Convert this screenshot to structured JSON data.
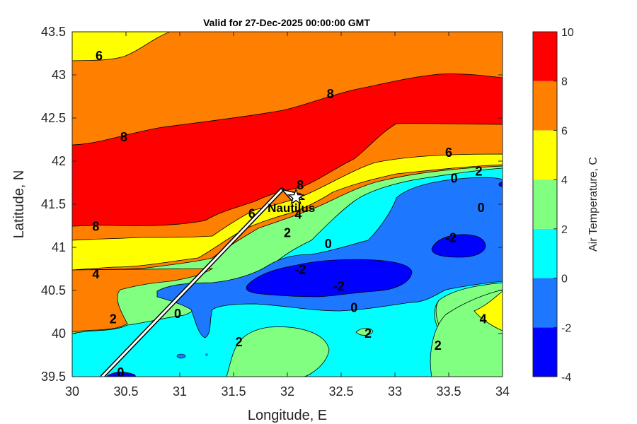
{
  "chart_data": {
    "type": "heatmap",
    "subtype": "filled-contour",
    "title": "Valid for 27-Dec-2025 00:00:00 GMT",
    "xlabel": "Longitude, E",
    "ylabel": "Latitude, N",
    "xlim": [
      30,
      34
    ],
    "ylim": [
      39.5,
      43.5
    ],
    "xticks": [
      30,
      30.5,
      31,
      31.5,
      32,
      32.5,
      33,
      33.5,
      34
    ],
    "xtick_labels": [
      "30",
      "30.5",
      "31",
      "31.5",
      "32",
      "32.5",
      "33",
      "33.5",
      "34"
    ],
    "yticks": [
      39.5,
      40,
      40.5,
      41,
      41.5,
      42,
      42.5,
      43,
      43.5
    ],
    "ytick_labels": [
      "39.5",
      "40",
      "40.5",
      "41",
      "41.5",
      "42",
      "42.5",
      "43",
      "43.5"
    ],
    "colorbar": {
      "label": "Air Temperature, C",
      "limits": [
        -4,
        10
      ],
      "levels": [
        -4,
        -2,
        0,
        2,
        4,
        6,
        8,
        10
      ],
      "tick_labels": [
        "-4",
        "-2",
        "0",
        "2",
        "4",
        "6",
        "8",
        "10"
      ],
      "colors": [
        "#0000ff",
        "#1e78ff",
        "#00ffff",
        "#80ff80",
        "#ffff00",
        "#ff8000",
        "#ff0000",
        "#800000"
      ]
    },
    "contour_labels": [
      {
        "text": "6",
        "lon": 30.25,
        "lat": 43.22
      },
      {
        "text": "8",
        "lon": 32.4,
        "lat": 42.78
      },
      {
        "text": "8",
        "lon": 30.48,
        "lat": 42.28
      },
      {
        "text": "6",
        "lon": 33.5,
        "lat": 42.1
      },
      {
        "text": "0",
        "lon": 33.55,
        "lat": 41.8
      },
      {
        "text": "2",
        "lon": 33.78,
        "lat": 41.88
      },
      {
        "text": "8",
        "lon": 32.12,
        "lat": 41.72
      },
      {
        "text": "4",
        "lon": 32.1,
        "lat": 41.38
      },
      {
        "text": "6",
        "lon": 31.67,
        "lat": 41.39
      },
      {
        "text": "0",
        "lon": 33.8,
        "lat": 41.46
      },
      {
        "text": "8",
        "lon": 30.22,
        "lat": 41.24
      },
      {
        "text": "2",
        "lon": 32.0,
        "lat": 41.17
      },
      {
        "text": "0",
        "lon": 32.38,
        "lat": 41.04
      },
      {
        "text": "-2",
        "lon": 33.52,
        "lat": 41.11
      },
      {
        "text": "4",
        "lon": 30.22,
        "lat": 40.69
      },
      {
        "text": "-2",
        "lon": 32.12,
        "lat": 40.74
      },
      {
        "text": "-2",
        "lon": 32.48,
        "lat": 40.55
      },
      {
        "text": "0",
        "lon": 32.62,
        "lat": 40.3
      },
      {
        "text": "0",
        "lon": 30.98,
        "lat": 40.23
      },
      {
        "text": "2",
        "lon": 30.38,
        "lat": 40.17
      },
      {
        "text": "4",
        "lon": 33.82,
        "lat": 40.17
      },
      {
        "text": "2",
        "lon": 32.75,
        "lat": 40.0
      },
      {
        "text": "2",
        "lon": 31.55,
        "lat": 39.9
      },
      {
        "text": "2",
        "lon": 33.4,
        "lat": 39.86
      },
      {
        "text": "0",
        "lon": 30.45,
        "lat": 39.55
      }
    ],
    "station": {
      "name": "Nautilus",
      "lon": 32.08,
      "lat": 41.58
    },
    "track": [
      [
        30.28,
        39.5
      ],
      [
        31.95,
        41.67
      ]
    ]
  }
}
